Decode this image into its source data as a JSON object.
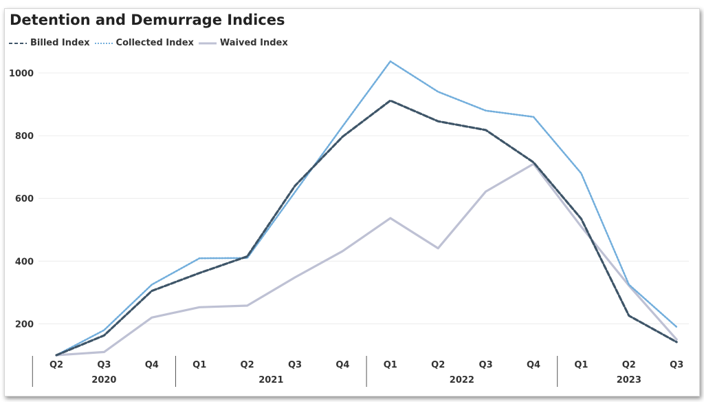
{
  "chart_data": {
    "type": "line",
    "title": "Detention and Demurrage Indices",
    "xlabel": "",
    "ylabel": "",
    "ylim": [
      100,
      1000
    ],
    "yticks": [
      200,
      400,
      600,
      800,
      1000
    ],
    "grid": true,
    "legend_position": "top-left",
    "x": [
      "Q2",
      "Q3",
      "Q4",
      "Q1",
      "Q2",
      "Q3",
      "Q4",
      "Q1",
      "Q2",
      "Q3",
      "Q4",
      "Q1",
      "Q2",
      "Q3"
    ],
    "year_groups": [
      {
        "label": "2020",
        "count": 3
      },
      {
        "label": "2021",
        "count": 4
      },
      {
        "label": "2022",
        "count": 4
      },
      {
        "label": "2023",
        "count": 3
      }
    ],
    "series": [
      {
        "name": "Billed Index",
        "color": "#3e5568",
        "style": "dashed",
        "values": [
          100,
          163,
          305,
          362,
          415,
          640,
          797,
          912,
          846,
          818,
          715,
          535,
          226,
          142
        ]
      },
      {
        "name": "Collected Index",
        "color": "#72aedc",
        "style": "dotted",
        "values": [
          100,
          180,
          325,
          409,
          410,
          620,
          830,
          1037,
          940,
          880,
          860,
          680,
          325,
          190
        ]
      },
      {
        "name": "Waived Index",
        "color": "#bec1d4",
        "style": "solid",
        "values": [
          100,
          110,
          220,
          253,
          258,
          348,
          432,
          537,
          441,
          622,
          710,
          510,
          322,
          150
        ]
      }
    ]
  }
}
